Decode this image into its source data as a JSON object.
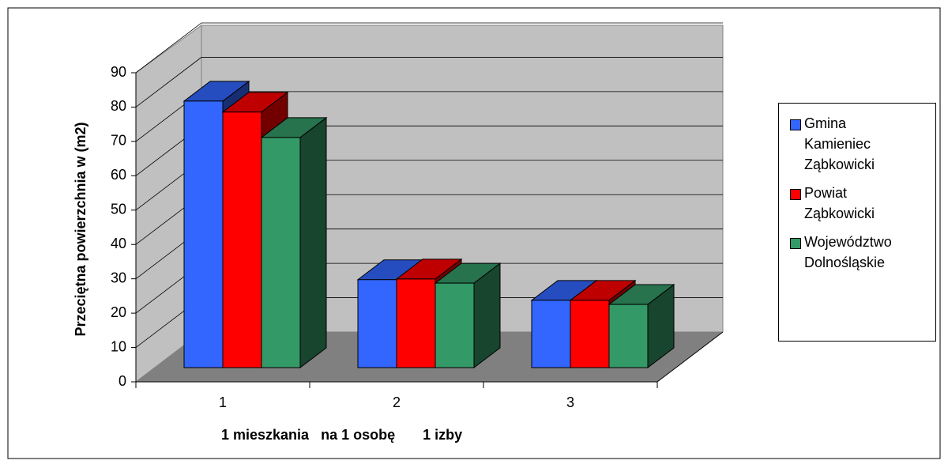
{
  "chart_data": {
    "type": "bar3d",
    "y_label": "Przeciętna powierzchnia w (m2)",
    "x_label": "1 mieszkania   na 1 osobę       1 izby",
    "categories": [
      "1",
      "2",
      "3"
    ],
    "series": [
      {
        "name": "Gmina\nKamieniec\nZąbkowicki",
        "color": "#3366ff",
        "values": [
          77.6,
          25.6,
          19.6
        ]
      },
      {
        "name": "Powiat\nZąbkowicki",
        "color": "#ff0000",
        "values": [
          74.4,
          25.8,
          19.6
        ]
      },
      {
        "name": "Województwo\nDolnośląskie",
        "color": "#339966",
        "values": [
          67.0,
          24.6,
          18.4
        ]
      }
    ],
    "ylim": [
      0,
      90
    ],
    "yticks": [
      0,
      10,
      20,
      30,
      40,
      50,
      60,
      70,
      80,
      90
    ],
    "grid": true,
    "legend": "right"
  }
}
